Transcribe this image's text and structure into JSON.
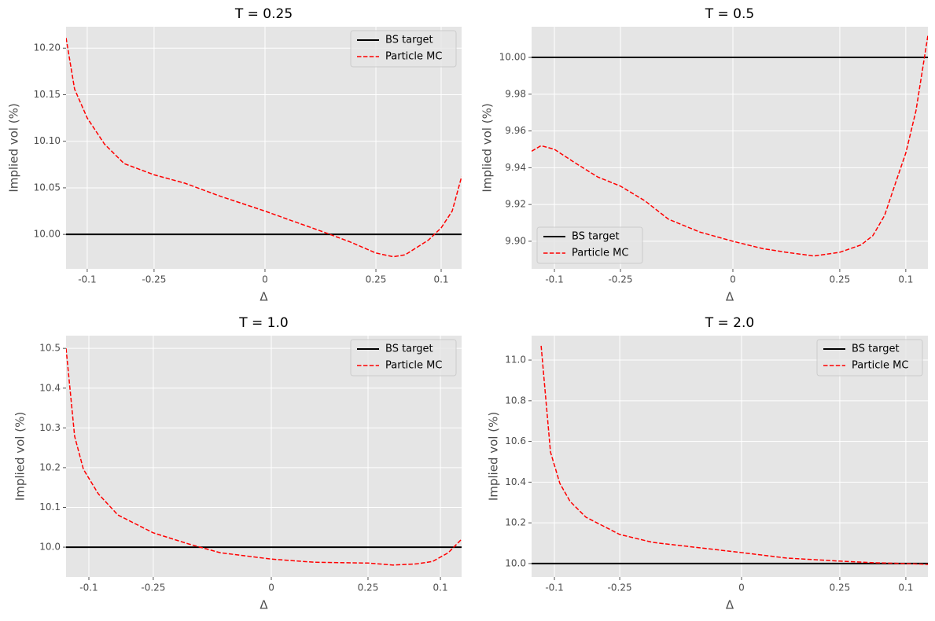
{
  "chart_data": [
    {
      "type": "line",
      "title": "T = 0.25",
      "x_label": "Δ",
      "y_label": "Implied vol (%)",
      "xlim": [
        -1.119,
        1.106
      ],
      "xticks": [
        {
          "value": -1.0,
          "label": "-0.1"
        },
        {
          "value": -0.624,
          "label": "-0.25"
        },
        0,
        {
          "value": 0.624,
          "label": "0.25"
        },
        {
          "value": 0.991,
          "label": "0.1"
        }
      ],
      "ylim": [
        9.963,
        10.223
      ],
      "yticks": [
        {
          "value": 10.0,
          "label": "10.00"
        },
        10.05,
        {
          "value": 10.1,
          "label": "10.10"
        },
        10.15,
        {
          "value": 10.2,
          "label": "10.20"
        }
      ],
      "grid": true,
      "legend": "upper right",
      "series": [
        {
          "name": "BS target",
          "color": "#000000",
          "linestyle": "solid",
          "x": [
            -1.119,
            1.106
          ],
          "values": [
            10.0,
            10.0
          ]
        },
        {
          "name": "Particle MC",
          "color": "#ff0000",
          "linestyle": "dashed",
          "x": [
            -1.119,
            -1.071,
            -1.0,
            -0.903,
            -0.792,
            -0.624,
            -0.451,
            -0.252,
            0,
            0.146,
            0.323,
            0.478,
            0.624,
            0.721,
            0.788,
            0.92,
            0.991,
            1.053,
            1.106
          ],
          "values": [
            10.211,
            10.156,
            10.125,
            10.097,
            10.076,
            10.064,
            10.055,
            10.041,
            10.025,
            10.015,
            10.003,
            9.992,
            9.98,
            9.976,
            9.978,
            9.994,
            10.007,
            10.025,
            10.062
          ]
        }
      ]
    },
    {
      "type": "line",
      "title": "T = 0.5",
      "x_label": "Δ",
      "y_label": "Implied vol (%)",
      "xlim": [
        -1.128,
        1.093
      ],
      "xticks": [
        {
          "value": -1.0,
          "label": "-0.1"
        },
        {
          "value": -0.63,
          "label": "-0.25"
        },
        0,
        {
          "value": 0.599,
          "label": "0.25"
        },
        {
          "value": 0.969,
          "label": "0.1"
        }
      ],
      "ylim": [
        9.885,
        10.0167
      ],
      "yticks": [
        {
          "value": 9.9,
          "label": "9.90"
        },
        9.92,
        9.94,
        9.96,
        9.98,
        {
          "value": 10.0,
          "label": "10.00"
        }
      ],
      "grid": true,
      "legend": "lower left",
      "series": [
        {
          "name": "BS target",
          "color": "#000000",
          "linestyle": "solid",
          "x": [
            -1.128,
            1.093
          ],
          "values": [
            10.0,
            10.0
          ]
        },
        {
          "name": "Particle MC",
          "color": "#ff0000",
          "linestyle": "dashed",
          "x": [
            -1.128,
            -1.075,
            -1.0,
            -0.89,
            -0.758,
            -0.63,
            -0.493,
            -0.361,
            -0.185,
            0,
            0.167,
            0.3,
            0.454,
            0.599,
            0.718,
            0.784,
            0.85,
            0.916,
            0.969,
            1.026,
            1.093
          ],
          "values": [
            9.949,
            9.952,
            9.95,
            9.943,
            9.935,
            9.93,
            9.922,
            9.912,
            9.905,
            9.9,
            9.896,
            9.894,
            9.892,
            9.894,
            9.898,
            9.903,
            9.914,
            9.933,
            9.948,
            9.971,
            10.012
          ]
        }
      ]
    },
    {
      "type": "line",
      "title": "T = 1.0",
      "x_label": "Δ",
      "y_label": "Implied vol (%)",
      "xlim": [
        -1.125,
        1.043
      ],
      "xticks": [
        {
          "value": -1.0,
          "label": "-0.1"
        },
        {
          "value": -0.647,
          "label": "-0.25"
        },
        0,
        {
          "value": 0.53,
          "label": "0.25"
        },
        {
          "value": 0.927,
          "label": "0.1"
        }
      ],
      "ylim": [
        9.925,
        10.532
      ],
      "yticks": [
        {
          "value": 10.0,
          "label": "10.0"
        },
        10.1,
        10.2,
        10.3,
        10.4,
        10.5
      ],
      "grid": true,
      "legend": "upper right",
      "series": [
        {
          "name": "BS target",
          "color": "#000000",
          "linestyle": "solid",
          "x": [
            -1.125,
            1.043
          ],
          "values": [
            10.0,
            10.0
          ]
        },
        {
          "name": "Particle MC",
          "color": "#ff0000",
          "linestyle": "dashed",
          "x": [
            -1.125,
            -1.078,
            -1.03,
            -0.948,
            -0.841,
            -0.647,
            -0.453,
            -0.28,
            0,
            0.237,
            0.53,
            0.668,
            0.797,
            0.884,
            0.97,
            1.043
          ],
          "values": [
            10.5,
            10.279,
            10.196,
            10.134,
            10.081,
            10.036,
            10.008,
            9.986,
            9.97,
            9.962,
            9.96,
            9.955,
            9.958,
            9.964,
            9.986,
            10.02
          ]
        }
      ]
    },
    {
      "type": "line",
      "title": "T = 2.0",
      "x_label": "Δ",
      "y_label": "Implied vol (%)",
      "xlim": [
        -1.122,
        0.996
      ],
      "xticks": [
        {
          "value": -1.0,
          "label": "-0.1"
        },
        {
          "value": -0.651,
          "label": "-0.25"
        },
        0,
        {
          "value": 0.525,
          "label": "0.25"
        },
        {
          "value": 0.878,
          "label": "0.1"
        }
      ],
      "ylim": [
        9.934,
        11.12
      ],
      "yticks": [
        {
          "value": 10.0,
          "label": "10.0"
        },
        10.2,
        10.4,
        10.6,
        10.8,
        {
          "value": 11.0,
          "label": "11.0"
        }
      ],
      "grid": true,
      "legend": "upper right",
      "series": [
        {
          "name": "BS target",
          "color": "#000000",
          "linestyle": "solid",
          "x": [
            -1.122,
            0.996
          ],
          "values": [
            10.0,
            10.0
          ]
        },
        {
          "name": "Particle MC",
          "color": "#ff0000",
          "linestyle": "dashed",
          "x": [
            -1.071,
            -1.021,
            -0.971,
            -0.916,
            -0.832,
            -0.651,
            -0.475,
            -0.181,
            0,
            0.239,
            0.525,
            0.702,
            0.878,
            0.996
          ],
          "values": [
            11.07,
            10.548,
            10.394,
            10.305,
            10.228,
            10.143,
            10.104,
            10.073,
            10.054,
            10.027,
            10.012,
            10.004,
            10.0,
            9.996
          ]
        }
      ]
    }
  ]
}
